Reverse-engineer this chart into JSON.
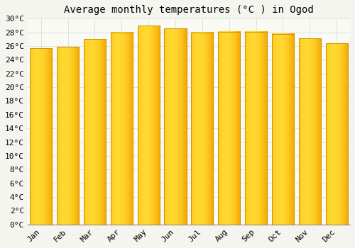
{
  "title": "Average monthly temperatures (°C ) in Ogod",
  "months": [
    "Jan",
    "Feb",
    "Mar",
    "Apr",
    "May",
    "Jun",
    "Jul",
    "Aug",
    "Sep",
    "Oct",
    "Nov",
    "Dec"
  ],
  "values": [
    25.7,
    25.9,
    27.0,
    28.0,
    29.0,
    28.6,
    28.0,
    28.1,
    28.1,
    27.8,
    27.1,
    26.4
  ],
  "bar_color_orange": "#F5A800",
  "bar_color_yellow": "#FFD830",
  "bar_edge_color": "#C8890A",
  "background_color": "#F5F5F0",
  "plot_bg_color": "#FAFAF5",
  "grid_color": "#E0E0DC",
  "ylim": [
    0,
    30
  ],
  "ytick_interval": 2,
  "title_fontsize": 10,
  "tick_fontsize": 8,
  "font_family": "monospace"
}
